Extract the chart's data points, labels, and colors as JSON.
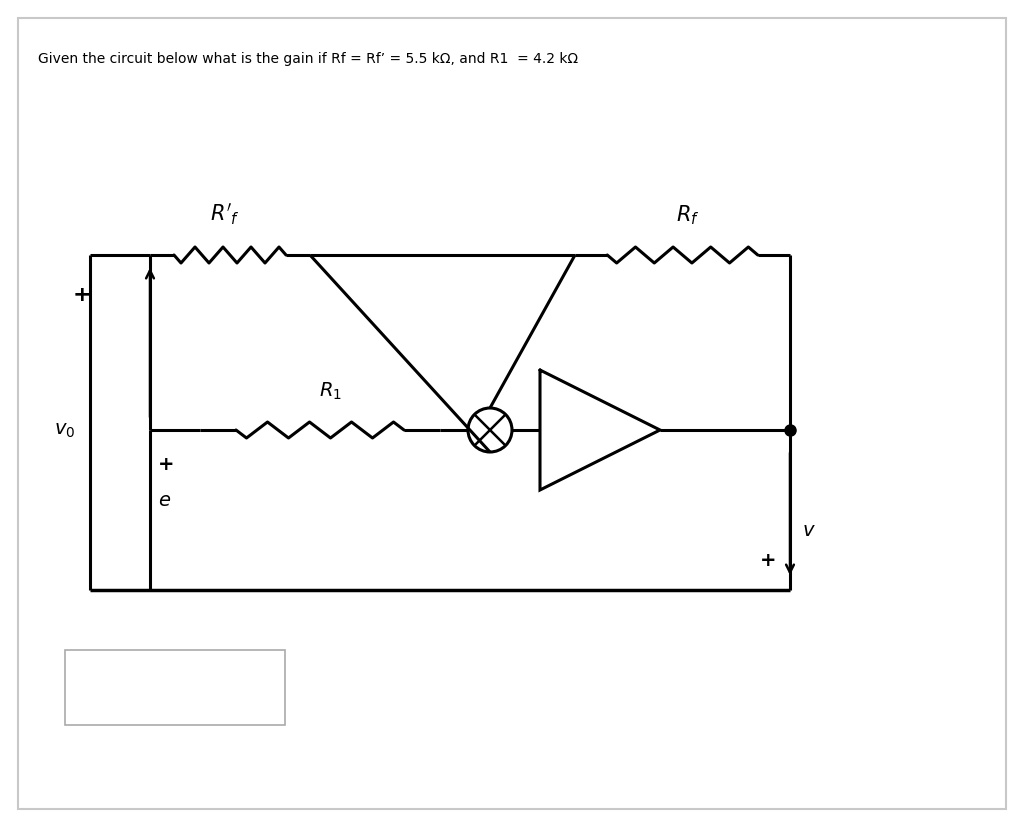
{
  "title": "Given the circuit below what is the gain if Rf = Rf’ = 5.5 kΩ, and R1  = 4.2 kΩ",
  "bg_color": "#ffffff",
  "line_color": "#000000",
  "fig_width": 10.24,
  "fig_height": 8.27,
  "dpi": 100,
  "border_color": "#c8c8c8"
}
